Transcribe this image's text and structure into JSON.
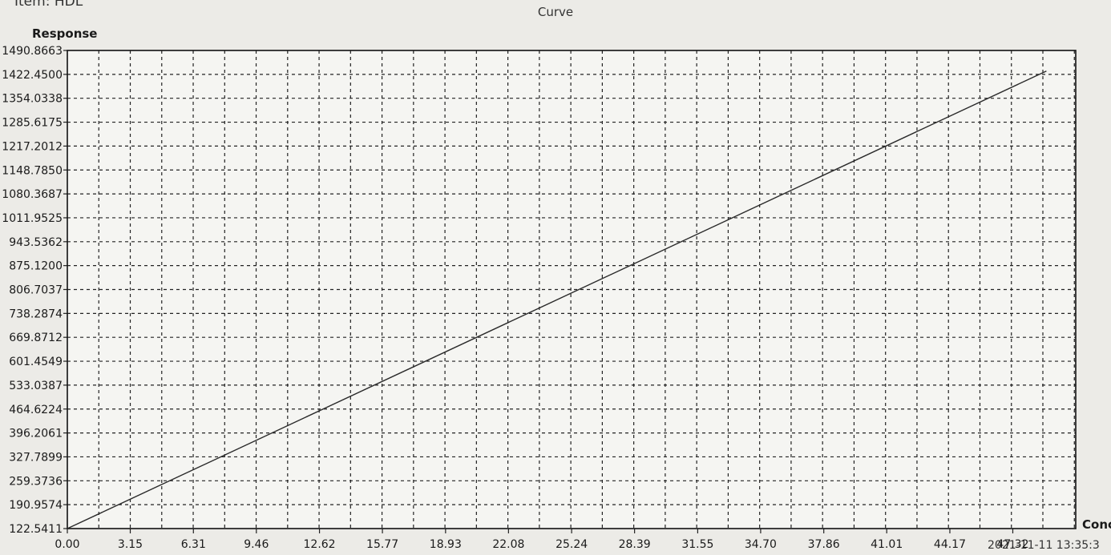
{
  "item_label": "Item: HDL",
  "chart_data": {
    "type": "line",
    "title": "Curve",
    "ylabel": "Response",
    "xlabel": "Conc",
    "timestamp": "2021-11-11 13:35:3",
    "x_ticks": [
      "0.00",
      "3.15",
      "6.31",
      "9.46",
      "12.62",
      "15.77",
      "18.93",
      "22.08",
      "25.24",
      "28.39",
      "31.55",
      "34.70",
      "37.86",
      "41.01",
      "44.17",
      "47.32"
    ],
    "y_ticks": [
      "122.5411",
      "190.9574",
      "259.3736",
      "327.7899",
      "396.2061",
      "464.6224",
      "533.0387",
      "601.4549",
      "669.8712",
      "738.2874",
      "806.7037",
      "875.1200",
      "943.5362",
      "1011.9525",
      "1080.3687",
      "1148.7850",
      "1217.2012",
      "1285.6175",
      "1354.0338",
      "1422.4500",
      "1490.8663"
    ],
    "xlim": [
      0,
      50.47
    ],
    "ylim": [
      122.5411,
      1490.8663
    ],
    "grid": true,
    "series": [
      {
        "x": [
          0,
          49.0
        ],
        "y": [
          122.5411,
          1432.0
        ]
      }
    ]
  }
}
